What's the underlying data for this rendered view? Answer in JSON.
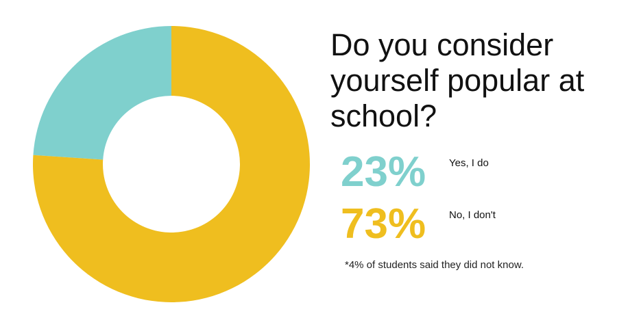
{
  "chart_data": {
    "type": "donut",
    "title": "Do you consider yourself popular at school?",
    "categories": [
      "Yes, I do",
      "No, I don't"
    ],
    "values": [
      23,
      73
    ],
    "value_labels": [
      "23%",
      "73%"
    ],
    "colors": [
      "#7fd0cd",
      "#efbe1f"
    ],
    "note": "*4% of students said they did not know."
  }
}
